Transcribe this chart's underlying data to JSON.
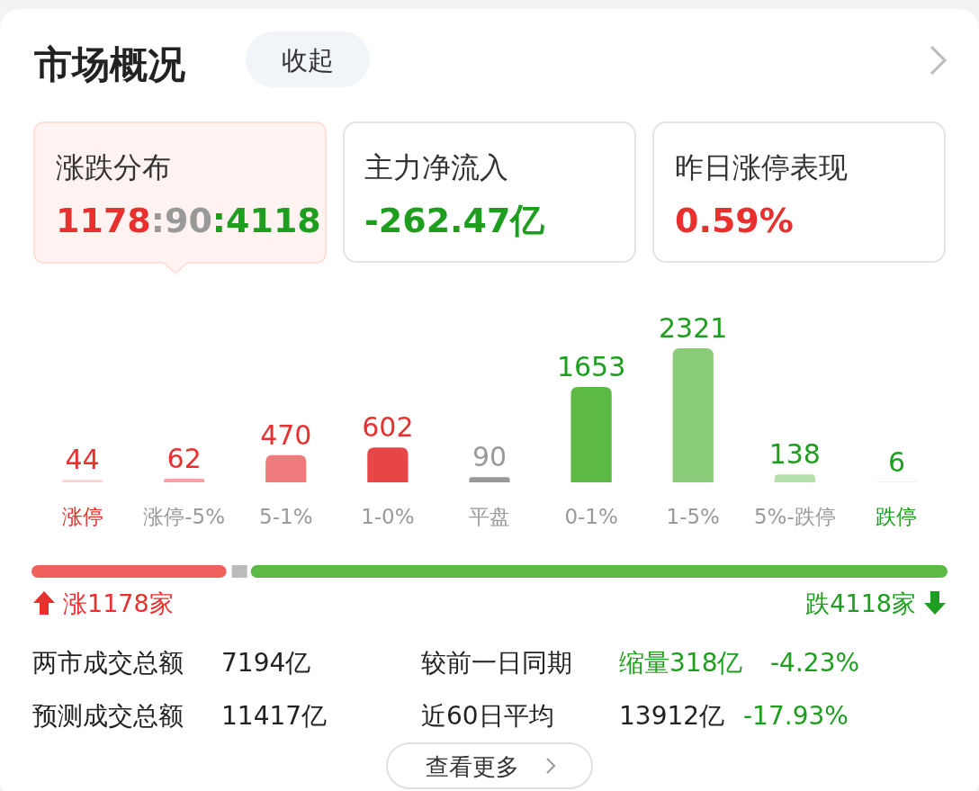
{
  "chart_data": {
    "type": "bar",
    "categories": [
      "涨停",
      "涨停-5%",
      "5-1%",
      "1-0%",
      "平盘",
      "0-1%",
      "1-5%",
      "5%-跌停",
      "跌停"
    ],
    "values": [
      44,
      62,
      470,
      602,
      90,
      1653,
      2321,
      138,
      6
    ],
    "colors": [
      "#fcd3d6",
      "#f5a3a6",
      "#ef7a7c",
      "#e84547",
      "#999999",
      "#5cb946",
      "#8acb78",
      "#b4e0a9",
      "#d3ecd0"
    ],
    "data_labels": true,
    "annotations": [
      "市场概况",
      "收起",
      "涨跌分布",
      "1178:90:4118",
      "主力净流入",
      "-262.47亿",
      "昨日涨停表现",
      "0.59%",
      "涨1178家",
      "跌4118家",
      "两市成交总额",
      "7194亿",
      "较前一日同期",
      "缩量318亿",
      "-4.23%",
      "预测成交总额",
      "11417亿",
      "近60日平均",
      "13912亿",
      "-17.93%",
      "查看更多"
    ]
  }
}
